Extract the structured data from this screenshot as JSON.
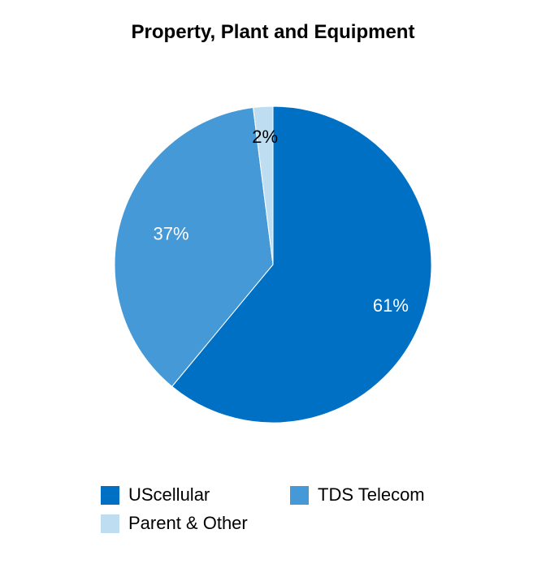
{
  "chart_data": {
    "type": "pie",
    "title": "Property, Plant and Equipment",
    "slices": [
      {
        "name": "UScellular",
        "value": 61,
        "label": "61%",
        "color": "#0070C4",
        "label_color": "#ffffff"
      },
      {
        "name": "TDS Telecom",
        "value": 37,
        "label": "37%",
        "color": "#4499D6",
        "label_color": "#ffffff"
      },
      {
        "name": "Parent & Other",
        "value": 2,
        "label": "2%",
        "color": "#BEDDF1",
        "label_color": "#000000"
      }
    ],
    "legend_placement": "bottom"
  }
}
